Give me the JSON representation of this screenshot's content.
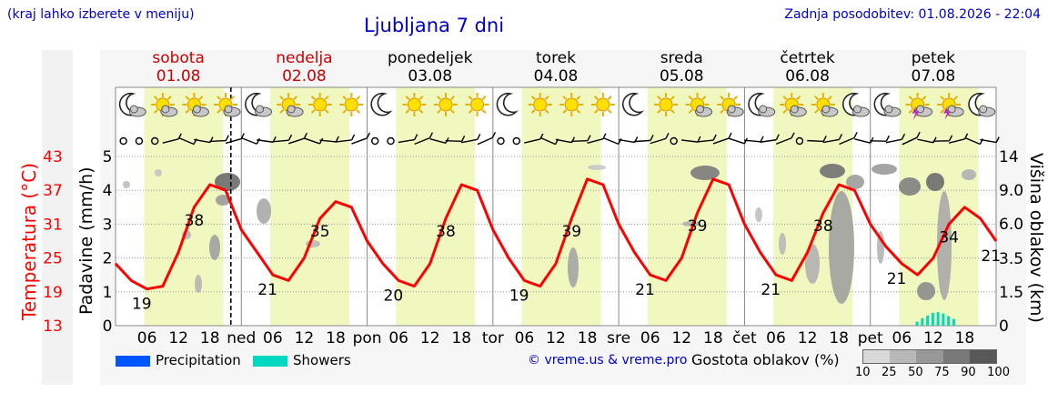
{
  "header": {
    "city_hint": "(kraj lahko izberete v meniju)",
    "title": "Ljubljana 7 dni",
    "updated": "Zadnja posodobitev: 01.08.2026 - 22:04"
  },
  "days": [
    {
      "name": "sobota",
      "date": "01.08",
      "weekend": true,
      "abbr": ""
    },
    {
      "name": "nedelja",
      "date": "02.08",
      "weekend": true,
      "abbr": "ned"
    },
    {
      "name": "ponedeljek",
      "date": "03.08",
      "weekend": false,
      "abbr": "pon"
    },
    {
      "name": "torek",
      "date": "04.08",
      "weekend": false,
      "abbr": "tor"
    },
    {
      "name": "sreda",
      "date": "05.08",
      "weekend": false,
      "abbr": "sre"
    },
    {
      "name": "četrtek",
      "date": "06.08",
      "weekend": false,
      "abbr": "čet"
    },
    {
      "name": "petek",
      "date": "07.08",
      "weekend": false,
      "abbr": "pet"
    }
  ],
  "icons": [
    [
      "moon-cloud",
      "sun-cloud",
      "sun-cloud",
      "sun-cloud"
    ],
    [
      "moon-cloud",
      "sun-cloud",
      "sun",
      "sun"
    ],
    [
      "moon",
      "sun",
      "sun",
      "sun"
    ],
    [
      "moon",
      "sun",
      "sun",
      "sun"
    ],
    [
      "moon",
      "sun",
      "sun-cloud",
      "sun-cloud"
    ],
    [
      "moon-cloud",
      "sun-cloud",
      "sun-cloud",
      "moon-cloud"
    ],
    [
      "moon-cloud",
      "sun-storm",
      "sun-storm",
      "moon-cloud"
    ]
  ],
  "hour_labels": [
    "06",
    "12",
    "18"
  ],
  "legend": {
    "precipitation": "Precipitation",
    "showers": "Showers",
    "copyright": "© vreme.us & vreme.pro",
    "cloud_density": "Gostota oblakov (%)",
    "scale": [
      "10",
      "25",
      "50",
      "75",
      "90",
      "100"
    ]
  },
  "colors": {
    "temperature": "#ff0000",
    "precipitation": "#0055ff",
    "showers": "#00d8c0",
    "daylight": "#f0f8c0",
    "text_blue": "#0000cc"
  },
  "chart_data": {
    "type": "line",
    "x_unit": "hours since 01.08 00:00",
    "now_marker_hour": 22,
    "xlim": [
      0,
      168
    ],
    "y_left_temperature": {
      "label": "Temperatura (°C)",
      "ticks": [
        13,
        19,
        25,
        31,
        37,
        43
      ],
      "range": [
        13,
        43
      ]
    },
    "y_left_precip": {
      "label": "Padavine (mm/h)",
      "ticks": [
        0,
        1,
        2,
        3,
        4,
        5
      ],
      "range": [
        0,
        5
      ]
    },
    "y_right_cloud_height": {
      "label": "Višina oblakov (km)",
      "ticks": [
        "0",
        "1.5",
        "3.5",
        "6.0",
        "9.0",
        "14"
      ]
    },
    "temperature_series": {
      "name": "Temperatura",
      "x": [
        0,
        3,
        6,
        9,
        12,
        15,
        18,
        21,
        24,
        27,
        30,
        33,
        36,
        39,
        42,
        45,
        48,
        51,
        54,
        57,
        60,
        63,
        66,
        69,
        72,
        75,
        78,
        81,
        84,
        87,
        90,
        93,
        96,
        99,
        102,
        105,
        108,
        111,
        114,
        117,
        120,
        123,
        126,
        129,
        132,
        135,
        138,
        141,
        144,
        147,
        150,
        153,
        156,
        159,
        162,
        165,
        168
      ],
      "y": [
        24,
        21,
        19.5,
        20,
        26,
        34,
        38,
        37,
        30,
        26,
        22,
        21,
        25,
        32,
        35,
        34,
        28,
        24,
        21,
        20,
        24,
        32,
        38,
        37,
        30,
        25,
        21,
        20,
        24,
        32,
        39,
        38,
        31,
        26,
        22,
        21,
        25,
        33,
        39,
        38,
        31,
        26,
        22,
        21,
        26,
        33,
        38,
        37,
        31,
        27,
        24,
        22,
        25,
        31,
        34,
        32,
        28
      ]
    },
    "temperature_labels": [
      {
        "x": 5,
        "value": "19",
        "kind": "min"
      },
      {
        "x": 15,
        "value": "38",
        "kind": "max"
      },
      {
        "x": 29,
        "value": "21",
        "kind": "min"
      },
      {
        "x": 39,
        "value": "35",
        "kind": "max"
      },
      {
        "x": 53,
        "value": "20",
        "kind": "min"
      },
      {
        "x": 63,
        "value": "38",
        "kind": "max"
      },
      {
        "x": 77,
        "value": "19",
        "kind": "min"
      },
      {
        "x": 87,
        "value": "39",
        "kind": "max"
      },
      {
        "x": 101,
        "value": "21",
        "kind": "min"
      },
      {
        "x": 111,
        "value": "39",
        "kind": "max"
      },
      {
        "x": 125,
        "value": "21",
        "kind": "min"
      },
      {
        "x": 135,
        "value": "38",
        "kind": "max"
      },
      {
        "x": 149,
        "value": "21",
        "kind": "min"
      },
      {
        "x": 159,
        "value": "34",
        "kind": "max"
      },
      {
        "x": 167,
        "value": "21",
        "kind": "min"
      }
    ],
    "showers": {
      "x": [
        153,
        154,
        155,
        156,
        157,
        158,
        159,
        160
      ],
      "mm": [
        0.12,
        0.22,
        0.3,
        0.38,
        0.4,
        0.36,
        0.28,
        0.2
      ]
    }
  }
}
